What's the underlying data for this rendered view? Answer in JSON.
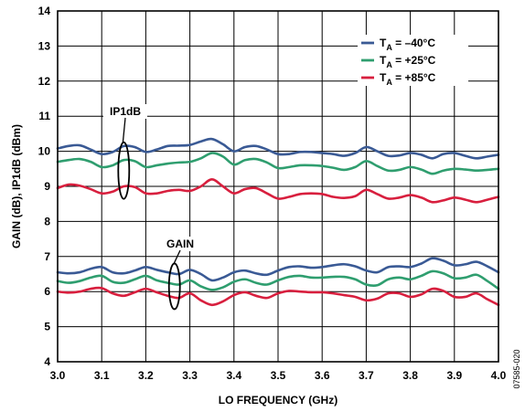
{
  "chart_data": {
    "type": "line",
    "xlabel": "LO FREQUENCY (GHz)",
    "ylabel": "GAIN (dB), IP1dB (dBm)",
    "xlim": [
      3.0,
      4.0
    ],
    "ylim": [
      4,
      14
    ],
    "x_ticks": [
      "3.0",
      "3.1",
      "3.2",
      "3.3",
      "3.4",
      "3.5",
      "3.6",
      "3.7",
      "3.8",
      "3.9",
      "4.0"
    ],
    "y_ticks": [
      "4",
      "5",
      "6",
      "7",
      "8",
      "9",
      "10",
      "11",
      "12",
      "13",
      "14"
    ],
    "grid": true,
    "legend_position": "top-right",
    "legend": [
      {
        "prefix": "T",
        "sub": "A",
        "suffix": " = –40°C",
        "color": "#3a5a95"
      },
      {
        "prefix": "T",
        "sub": "A",
        "suffix": " = +25°C",
        "color": "#2f9e6f"
      },
      {
        "prefix": "T",
        "sub": "A",
        "suffix": " = +85°C",
        "color": "#d81f3e"
      }
    ],
    "annotations": [
      "IP1dB",
      "GAIN"
    ],
    "figure_id": "07585-020",
    "x": [
      3.0,
      3.025,
      3.05,
      3.075,
      3.1,
      3.125,
      3.15,
      3.175,
      3.2,
      3.225,
      3.25,
      3.275,
      3.3,
      3.325,
      3.35,
      3.375,
      3.4,
      3.425,
      3.45,
      3.475,
      3.5,
      3.525,
      3.55,
      3.575,
      3.6,
      3.625,
      3.65,
      3.675,
      3.7,
      3.725,
      3.75,
      3.775,
      3.8,
      3.825,
      3.85,
      3.875,
      3.9,
      3.925,
      3.95,
      3.975,
      4.0
    ],
    "series": [
      {
        "group": "IP1dB",
        "color": "#3a5a95",
        "values": [
          10.08,
          10.15,
          10.17,
          10.05,
          9.92,
          9.98,
          10.15,
          10.12,
          9.98,
          10.05,
          10.15,
          10.16,
          10.18,
          10.28,
          10.35,
          10.2,
          10.0,
          10.12,
          10.15,
          10.05,
          9.92,
          9.92,
          9.98,
          9.98,
          9.95,
          9.92,
          9.87,
          9.95,
          10.12,
          10.0,
          9.87,
          9.88,
          9.95,
          9.9,
          9.8,
          9.92,
          9.95,
          9.87,
          9.8,
          9.85,
          9.9
        ]
      },
      {
        "group": "IP1dB",
        "color": "#2f9e6f",
        "values": [
          9.7,
          9.75,
          9.78,
          9.7,
          9.55,
          9.6,
          9.75,
          9.72,
          9.55,
          9.6,
          9.65,
          9.68,
          9.7,
          9.8,
          9.95,
          9.85,
          9.62,
          9.75,
          9.78,
          9.68,
          9.52,
          9.55,
          9.6,
          9.6,
          9.58,
          9.53,
          9.47,
          9.55,
          9.72,
          9.58,
          9.45,
          9.47,
          9.55,
          9.48,
          9.36,
          9.45,
          9.5,
          9.48,
          9.45,
          9.47,
          9.5
        ]
      },
      {
        "group": "IP1dB",
        "color": "#d81f3e",
        "values": [
          8.95,
          9.05,
          9.02,
          8.92,
          8.8,
          8.85,
          9.0,
          8.98,
          8.8,
          8.8,
          8.87,
          8.9,
          8.87,
          9.0,
          9.2,
          9.0,
          8.8,
          8.92,
          8.95,
          8.8,
          8.65,
          8.7,
          8.78,
          8.8,
          8.78,
          8.7,
          8.67,
          8.72,
          8.9,
          8.78,
          8.65,
          8.68,
          8.75,
          8.68,
          8.55,
          8.6,
          8.68,
          8.62,
          8.55,
          8.62,
          8.7
        ]
      },
      {
        "group": "GAIN",
        "color": "#3a5a95",
        "values": [
          6.55,
          6.52,
          6.55,
          6.65,
          6.7,
          6.55,
          6.52,
          6.6,
          6.7,
          6.62,
          6.55,
          6.5,
          6.62,
          6.5,
          6.32,
          6.4,
          6.55,
          6.6,
          6.52,
          6.48,
          6.6,
          6.7,
          6.72,
          6.68,
          6.7,
          6.75,
          6.78,
          6.72,
          6.6,
          6.55,
          6.7,
          6.72,
          6.7,
          6.8,
          6.95,
          6.88,
          6.75,
          6.78,
          6.85,
          6.72,
          6.55
        ]
      },
      {
        "group": "GAIN",
        "color": "#2f9e6f",
        "values": [
          6.3,
          6.25,
          6.3,
          6.4,
          6.45,
          6.28,
          6.25,
          6.35,
          6.45,
          6.32,
          6.25,
          6.2,
          6.32,
          6.15,
          6.05,
          6.12,
          6.28,
          6.35,
          6.25,
          6.2,
          6.32,
          6.42,
          6.45,
          6.4,
          6.4,
          6.42,
          6.42,
          6.35,
          6.2,
          6.18,
          6.35,
          6.4,
          6.35,
          6.45,
          6.58,
          6.52,
          6.38,
          6.4,
          6.48,
          6.3,
          6.08
        ]
      },
      {
        "group": "GAIN",
        "color": "#d81f3e",
        "values": [
          6.0,
          5.97,
          6.0,
          6.08,
          6.1,
          5.95,
          5.88,
          5.98,
          6.08,
          5.98,
          5.88,
          5.82,
          5.95,
          5.75,
          5.62,
          5.72,
          5.9,
          5.98,
          5.88,
          5.82,
          5.95,
          6.02,
          6.0,
          5.98,
          5.98,
          5.95,
          5.9,
          5.85,
          5.75,
          5.8,
          5.95,
          5.95,
          5.85,
          5.92,
          6.08,
          6.02,
          5.85,
          5.85,
          5.95,
          5.78,
          5.62
        ]
      }
    ]
  }
}
